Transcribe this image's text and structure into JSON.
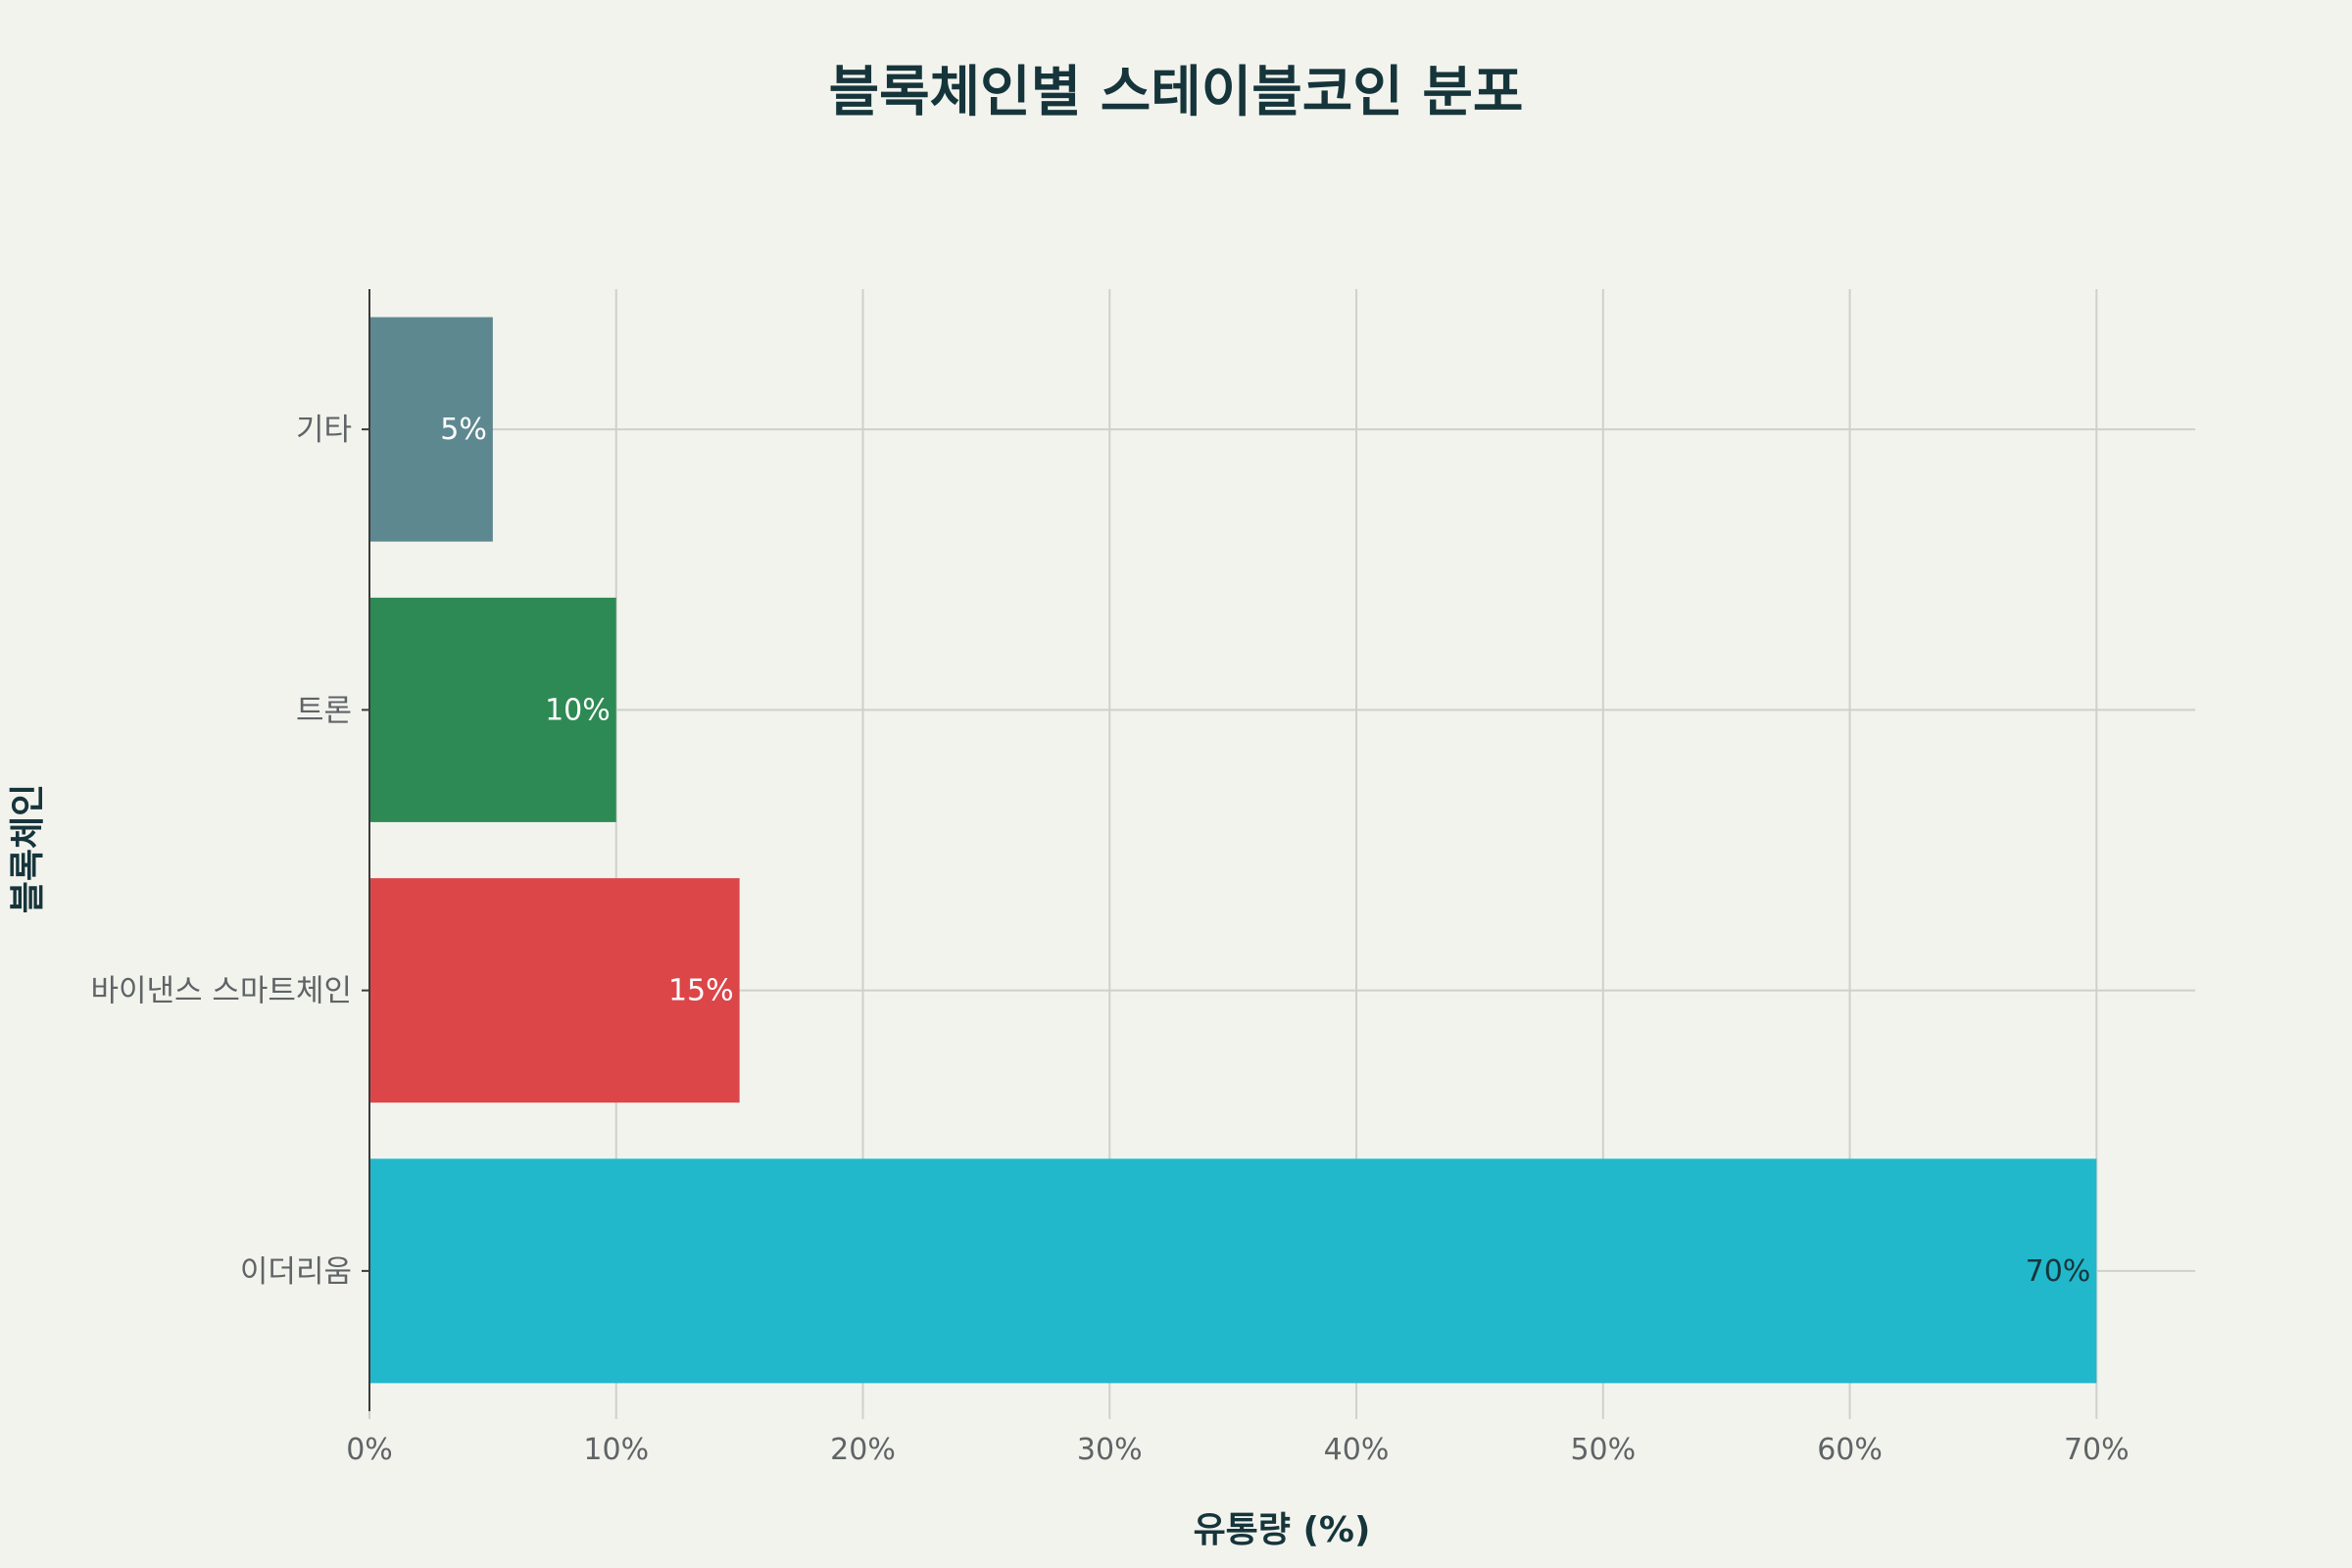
{
  "chart_data": {
    "type": "bar",
    "orientation": "horizontal",
    "title": "블록체인별 스테이블코인 분포",
    "xlabel": "유통량 (%)",
    "ylabel": "블록체인",
    "categories": [
      "이더리움",
      "바이낸스 스마트체인",
      "트론",
      "기타"
    ],
    "values": [
      70,
      15,
      10,
      5
    ],
    "data_labels": [
      "70%",
      "15%",
      "10%",
      "5%"
    ],
    "colors": [
      "#21b8cc",
      "#dc4649",
      "#2e8a54",
      "#5e8890"
    ],
    "label_colors": [
      "#16353b",
      "#ffffff",
      "#ffffff",
      "#ffffff"
    ],
    "xlim": [
      0,
      74
    ],
    "xticks": [
      0,
      10,
      20,
      30,
      40,
      50,
      60,
      70
    ],
    "xtick_labels": [
      "0%",
      "10%",
      "20%",
      "30%",
      "40%",
      "50%",
      "60%",
      "70%"
    ],
    "grid": true,
    "legend": "none"
  }
}
